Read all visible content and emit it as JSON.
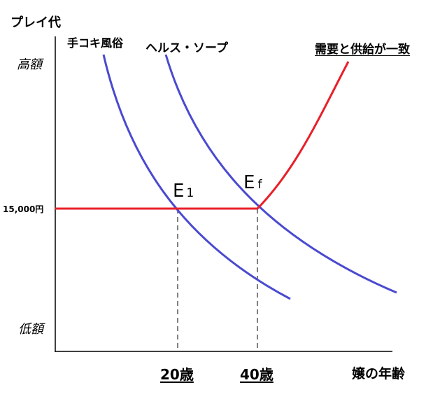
{
  "y_axis_title": "プレイ代",
  "x_axis_title": "嬢の年齢",
  "y_high": "高額",
  "y_low": "低額",
  "price_level": "15,000円",
  "curves": {
    "handjob": "手コキ風俗",
    "health_soap": "ヘルス・ソープ",
    "equilibrium": "需要と供給が一致"
  },
  "points": {
    "e1_main": "E",
    "e1_sub": "1",
    "ef_main": "E",
    "ef_sub": "f"
  },
  "x_ticks": [
    "20歳",
    "40歳"
  ],
  "colors": {
    "demand": "#4a4ad0",
    "supply": "#e8202a"
  }
}
